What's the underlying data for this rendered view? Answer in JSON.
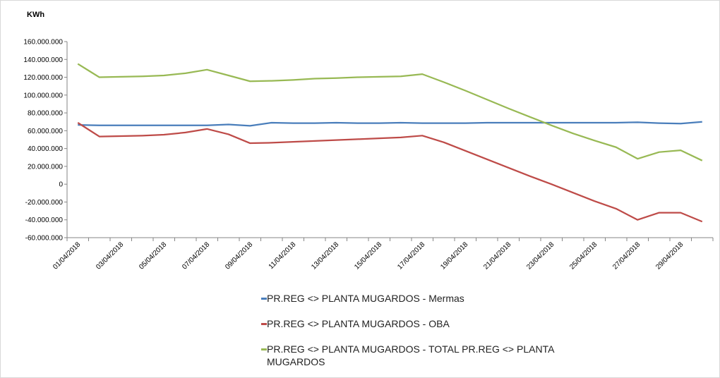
{
  "chart_data": {
    "type": "line",
    "y_label": "KWh",
    "categories": [
      "01/04/2018",
      null,
      "03/04/2018",
      null,
      "05/04/2018",
      null,
      "07/04/2018",
      null,
      "09/04/2018",
      null,
      "11/04/2018",
      null,
      "13/04/2018",
      null,
      "15/04/2018",
      null,
      "17/04/2018",
      null,
      "19/04/2018",
      null,
      "21/04/2018",
      null,
      "23/04/2018",
      null,
      "25/04/2018",
      null,
      "27/04/2018",
      null,
      "29/04/2018",
      null
    ],
    "ylim": [
      -60000000,
      160000000
    ],
    "yticks": [
      {
        "value": -60000000,
        "label": "-60.000.000"
      },
      {
        "value": -40000000,
        "label": "-40.000.000"
      },
      {
        "value": -20000000,
        "label": "-20.000.000"
      },
      0,
      {
        "value": 20000000,
        "label": "20.000.000"
      },
      {
        "value": 40000000,
        "label": "40.000.000"
      },
      {
        "value": 60000000,
        "label": "60.000.000"
      },
      {
        "value": 80000000,
        "label": "80.000.000"
      },
      {
        "value": 100000000,
        "label": "100.000.000"
      },
      {
        "value": 120000000,
        "label": "120.000.000"
      },
      {
        "value": 140000000,
        "label": "140.000.000"
      },
      {
        "value": 160000000,
        "label": "160.000.000"
      }
    ],
    "grid": false,
    "series": [
      {
        "name": "PR.REG <> PLANTA MUGARDOS - Mermas",
        "color": "#4a7ebb",
        "values": [
          66500000,
          66000000,
          66000000,
          66000000,
          66000000,
          66000000,
          66000000,
          67000000,
          65500000,
          69000000,
          68500000,
          68500000,
          69000000,
          68500000,
          68500000,
          69000000,
          68500000,
          68500000,
          68500000,
          69000000,
          69000000,
          69000000,
          69000000,
          69000000,
          69000000,
          69000000,
          69500000,
          68500000,
          68000000,
          70000000
        ]
      },
      {
        "name": "PR.REG <> PLANTA MUGARDOS - OBA",
        "color": "#be4b48",
        "values": [
          69000000,
          53500000,
          54000000,
          54500000,
          55500000,
          58000000,
          62000000,
          56000000,
          46000000,
          46500000,
          47500000,
          48500000,
          49500000,
          50500000,
          51500000,
          52500000,
          54500000,
          47000000,
          37500000,
          28000000,
          18500000,
          9000000,
          0,
          -9500000,
          -19000000,
          -27500000,
          -40000000,
          -32000000,
          -32000000,
          -42000000
        ]
      },
      {
        "name": "PR.REG <> PLANTA MUGARDOS - TOTAL PR.REG <> PLANTA MUGARDOS",
        "color": "#98b954",
        "values": [
          135000000,
          120000000,
          120500000,
          121000000,
          122000000,
          124500000,
          128500000,
          122000000,
          115500000,
          116000000,
          117000000,
          118500000,
          119000000,
          120000000,
          120500000,
          121000000,
          123500000,
          114500000,
          105000000,
          95000000,
          85000000,
          75500000,
          66000000,
          57000000,
          49000000,
          41500000,
          28500000,
          36000000,
          38000000,
          26500000
        ]
      }
    ]
  }
}
